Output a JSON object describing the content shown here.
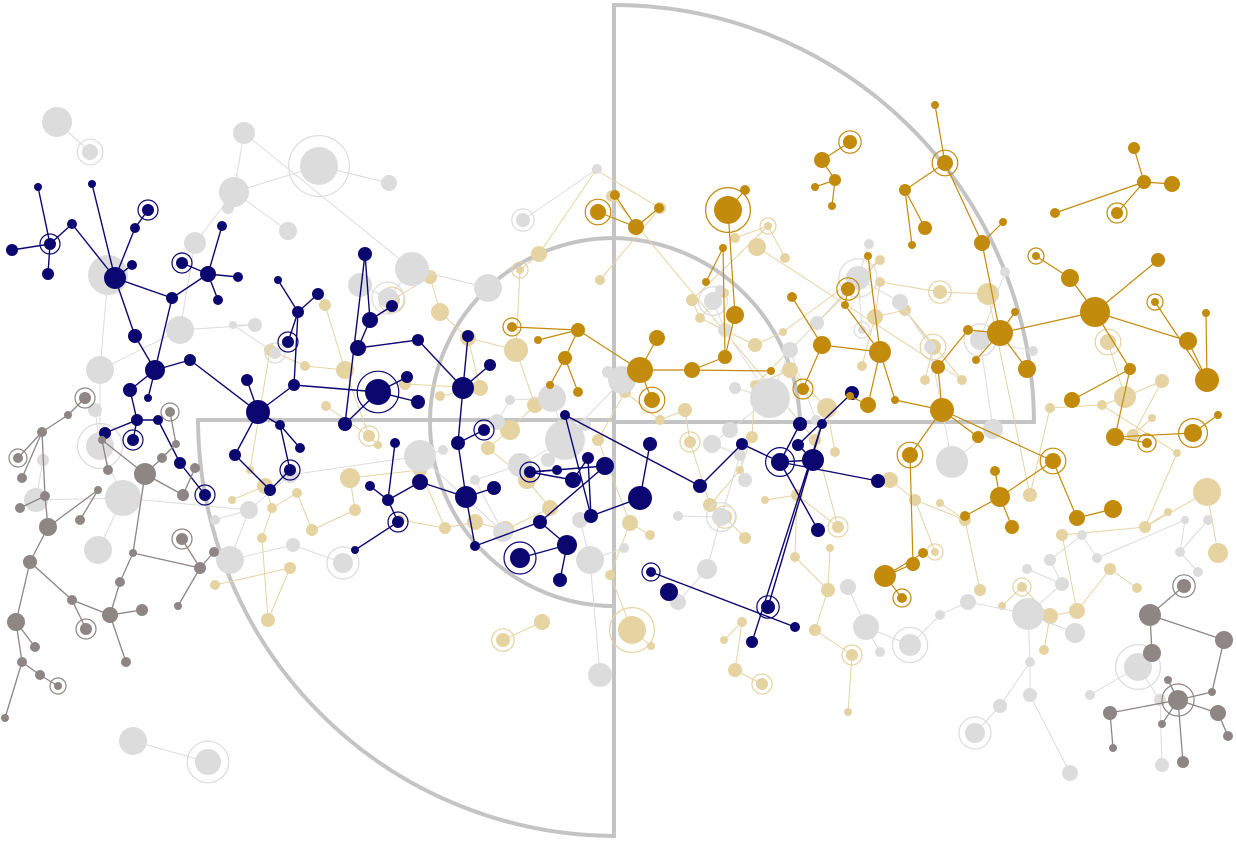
{
  "artwork": {
    "kind": "abstract-network-graphic",
    "palette": {
      "background": "#ffffff",
      "frame": "#c4c4c4",
      "navy": "#0c0670",
      "gold": "#c28b0c",
      "gold_light": "#e6d3a2",
      "gray": "#8e8585",
      "gray_light": "#dcdcdc",
      "lavender_light": "#ece6ee"
    },
    "clusters": [
      {
        "name": "navy-network",
        "color_key": "navy"
      },
      {
        "name": "gold-network",
        "color_key": "gold"
      },
      {
        "name": "gold-faded-network",
        "color_key": "gold_light"
      },
      {
        "name": "gray-network",
        "color_key": "gray"
      },
      {
        "name": "gray-faded-network",
        "color_key": "gray_light"
      }
    ]
  }
}
